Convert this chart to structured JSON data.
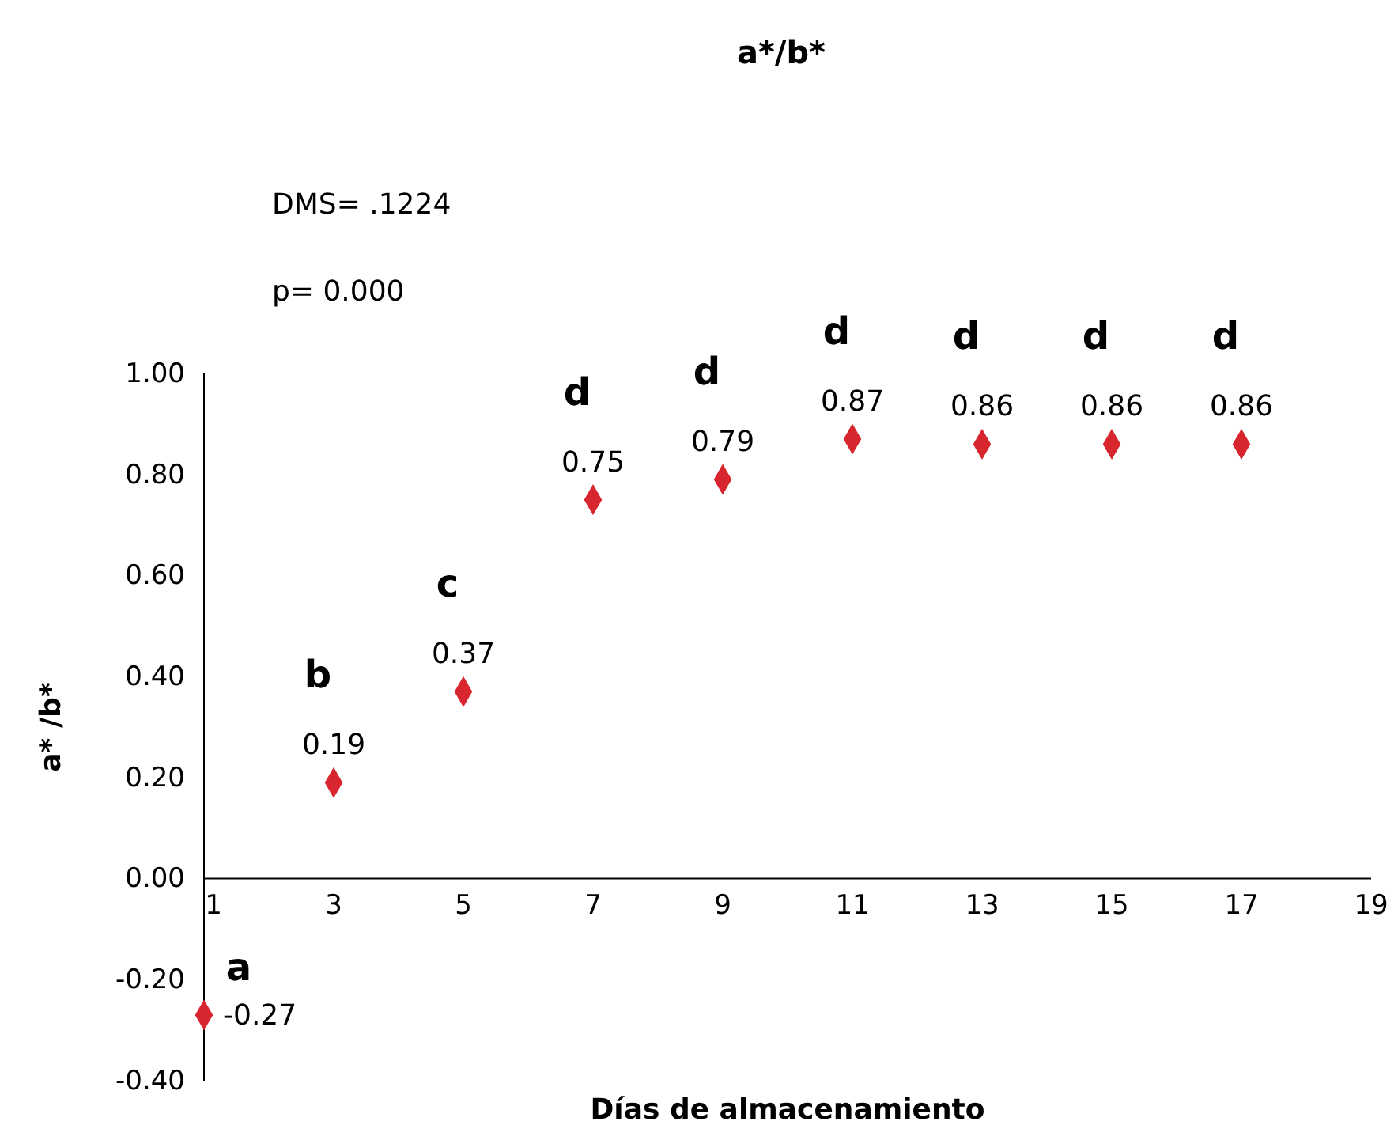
{
  "chart_data": {
    "type": "scatter",
    "title": "a*/b*",
    "xlabel": "Días de almacenamiento",
    "ylabel": "a* /b*",
    "x": [
      1,
      3,
      5,
      7,
      9,
      11,
      13,
      15,
      17
    ],
    "series": [
      {
        "color": "#d7262e",
        "values": [
          -0.27,
          0.19,
          0.37,
          0.75,
          0.79,
          0.87,
          0.86,
          0.86,
          0.86
        ]
      }
    ],
    "xlim": [
      1,
      19
    ],
    "xticks": [
      1,
      3,
      5,
      7,
      9,
      11,
      13,
      15,
      17,
      19
    ],
    "ylim": [
      -0.4,
      1.0
    ],
    "yticks": [
      {
        "value": -0.4,
        "label": "-0.40"
      },
      {
        "value": -0.2,
        "label": "-0.20"
      },
      {
        "value": 0,
        "label": "0.00"
      },
      {
        "value": 0.2,
        "label": "0.20"
      },
      {
        "value": 0.4,
        "label": "0.40"
      },
      {
        "value": 0.6,
        "label": "0.60"
      },
      {
        "value": 0.8,
        "label": "0.80"
      },
      {
        "value": 1.0,
        "label": "1.00"
      }
    ],
    "marker": "diamond",
    "data_labels": true,
    "grid": false,
    "annotations": [
      "DMS= .1224",
      "p= 0.000",
      {
        "text": "a",
        "x": 1,
        "y": -0.27
      },
      {
        "text": "b",
        "x": 3,
        "y": 0.19
      },
      {
        "text": "c",
        "x": 5,
        "y": 0.37
      },
      {
        "text": "d",
        "x": 7,
        "y": 0.75
      },
      {
        "text": "d",
        "x": 9,
        "y": 0.79
      },
      {
        "text": "d",
        "x": 11,
        "y": 0.87
      },
      {
        "text": "d",
        "x": 13,
        "y": 0.86
      },
      {
        "text": "d",
        "x": 15,
        "y": 0.86
      },
      {
        "text": "d",
        "x": 17,
        "y": 0.86
      }
    ]
  }
}
